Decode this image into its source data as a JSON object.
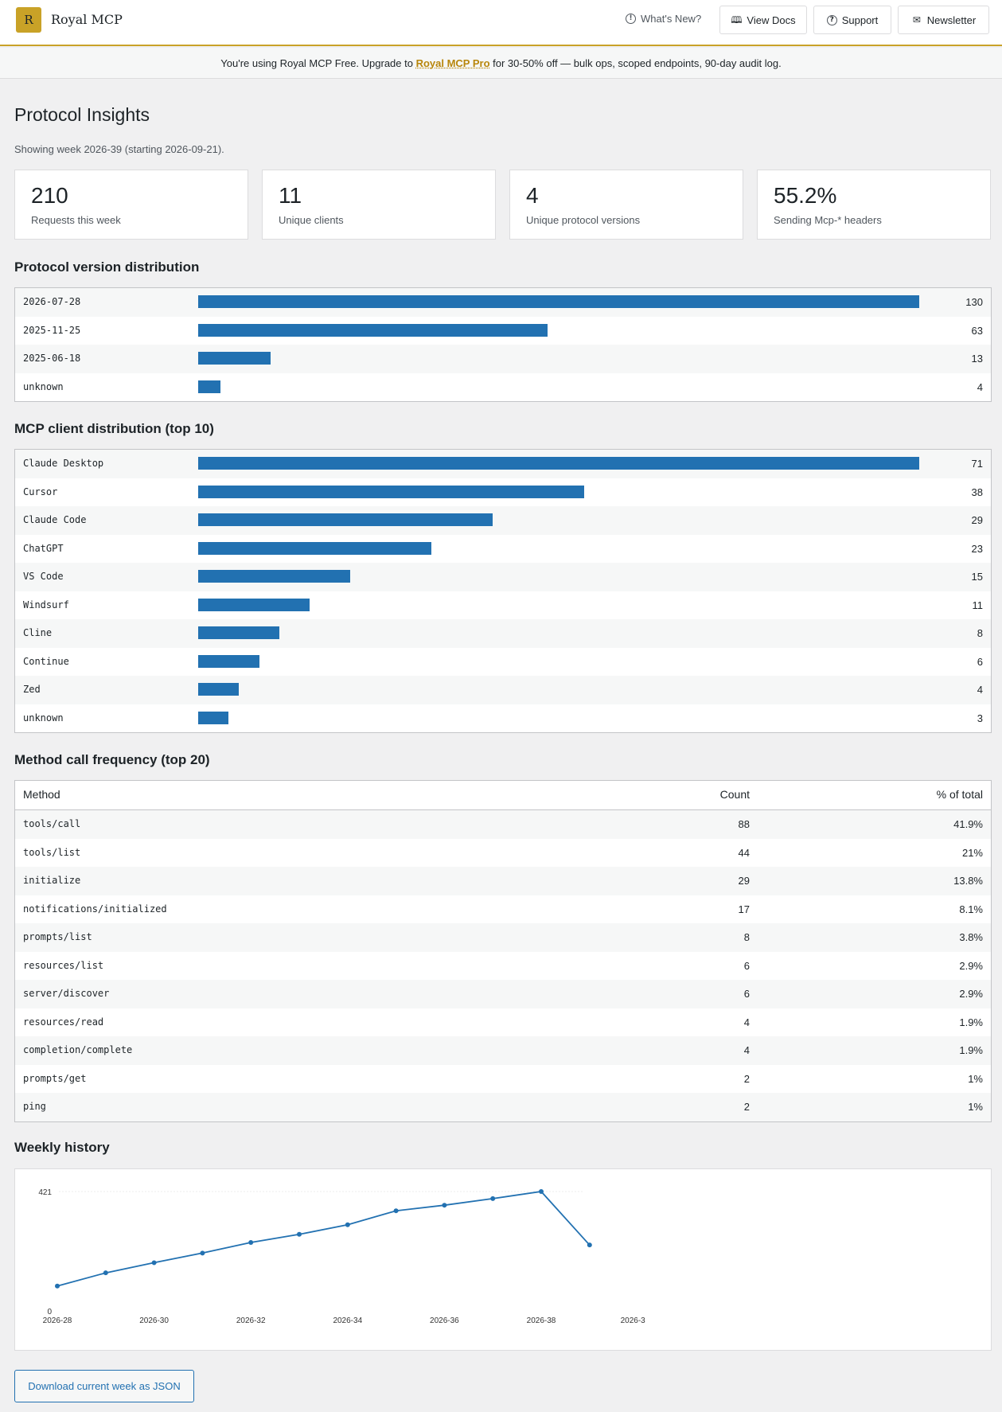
{
  "header": {
    "logo_letter": "R",
    "app_name": "Royal MCP",
    "whats_new": "What's New?",
    "view_docs": "View Docs",
    "support": "Support",
    "newsletter": "Newsletter"
  },
  "notice": {
    "prefix": "You're using Royal MCP Free. Upgrade to ",
    "link": "Royal MCP Pro",
    "suffix": " for 30-50% off — bulk ops, scoped endpoints, 90-day audit log."
  },
  "page": {
    "title": "Protocol Insights",
    "subtitle": "Showing week 2026-39 (starting 2026-09-21)."
  },
  "stats": [
    {
      "value": "210",
      "label": "Requests this week"
    },
    {
      "value": "11",
      "label": "Unique clients"
    },
    {
      "value": "4",
      "label": "Unique protocol versions"
    },
    {
      "value": "55.2%",
      "label": "Sending Mcp-* headers"
    }
  ],
  "protocol_section": {
    "title": "Protocol version distribution",
    "rows": [
      {
        "label": "2026-07-28",
        "count": 130
      },
      {
        "label": "2025-11-25",
        "count": 63
      },
      {
        "label": "2025-06-18",
        "count": 13
      },
      {
        "label": "unknown",
        "count": 4
      }
    ]
  },
  "client_section": {
    "title": "MCP client distribution (top 10)",
    "rows": [
      {
        "label": "Claude Desktop",
        "count": 71
      },
      {
        "label": "Cursor",
        "count": 38
      },
      {
        "label": "Claude Code",
        "count": 29
      },
      {
        "label": "ChatGPT",
        "count": 23
      },
      {
        "label": "VS Code",
        "count": 15
      },
      {
        "label": "Windsurf",
        "count": 11
      },
      {
        "label": "Cline",
        "count": 8
      },
      {
        "label": "Continue",
        "count": 6
      },
      {
        "label": "Zed",
        "count": 4
      },
      {
        "label": "unknown",
        "count": 3
      }
    ]
  },
  "method_section": {
    "title": "Method call frequency (top 20)",
    "headers": {
      "method": "Method",
      "count": "Count",
      "pct": "% of total"
    },
    "rows": [
      {
        "method": "tools/call",
        "count": "88",
        "pct": "41.9%"
      },
      {
        "method": "tools/list",
        "count": "44",
        "pct": "21%"
      },
      {
        "method": "initialize",
        "count": "29",
        "pct": "13.8%"
      },
      {
        "method": "notifications/initialized",
        "count": "17",
        "pct": "8.1%"
      },
      {
        "method": "prompts/list",
        "count": "8",
        "pct": "3.8%"
      },
      {
        "method": "resources/list",
        "count": "6",
        "pct": "2.9%"
      },
      {
        "method": "server/discover",
        "count": "6",
        "pct": "2.9%"
      },
      {
        "method": "resources/read",
        "count": "4",
        "pct": "1.9%"
      },
      {
        "method": "completion/complete",
        "count": "4",
        "pct": "1.9%"
      },
      {
        "method": "prompts/get",
        "count": "2",
        "pct": "1%"
      },
      {
        "method": "ping",
        "count": "2",
        "pct": "1%"
      }
    ]
  },
  "history_section": {
    "title": "Weekly history"
  },
  "chart_data": {
    "type": "line",
    "x": [
      "2026-28",
      "2026-29",
      "2026-30",
      "2026-31",
      "2026-32",
      "2026-33",
      "2026-34",
      "2026-35",
      "2026-36",
      "2026-37",
      "2026-38",
      "2026-39"
    ],
    "x_tick_labels": [
      "2026-28",
      "2026-30",
      "2026-32",
      "2026-34",
      "2026-36",
      "2026-38",
      "2026-3"
    ],
    "y_tick_labels": [
      "421",
      "0"
    ],
    "series": [
      {
        "values": [
          48,
          100,
          140,
          178,
          220,
          252,
          290,
          345,
          367,
          393,
          421,
          210
        ]
      }
    ],
    "ylim": [
      0,
      421
    ],
    "color": "#2271b1",
    "grid": false
  },
  "download_button": "Download current week as JSON"
}
